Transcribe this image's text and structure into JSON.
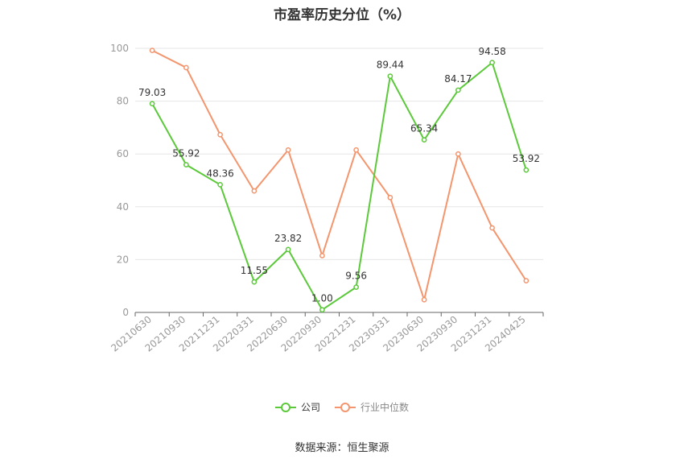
{
  "chart_data": {
    "type": "line",
    "title": "市盈率历史分位（%）",
    "categories": [
      "20210630",
      "20210930",
      "20211231",
      "20220331",
      "20220630",
      "20220930",
      "20221231",
      "20230331",
      "20230630",
      "20230930",
      "20231231",
      "20240425"
    ],
    "series": [
      {
        "name": "公司",
        "color": "#5cc93b",
        "values": [
          79.03,
          55.92,
          48.36,
          11.55,
          23.82,
          1.0,
          9.56,
          89.44,
          65.34,
          84.17,
          94.58,
          53.92
        ],
        "labels": [
          "79.03",
          "55.92",
          "48.36",
          "11.55",
          "23.82",
          "1.00",
          "9.56",
          "89.44",
          "65.34",
          "84.17",
          "94.58",
          "53.92"
        ]
      },
      {
        "name": "行业中位数",
        "color": "#f4956d",
        "values": [
          99.2,
          92.7,
          67.3,
          46.0,
          61.5,
          21.5,
          61.5,
          43.5,
          4.8,
          60.0,
          32.0,
          12.0
        ]
      }
    ],
    "ylim": [
      0,
      100
    ],
    "yticks": [
      0,
      20,
      40,
      60,
      80,
      100
    ],
    "grid": true,
    "legend": "bottom-center"
  },
  "source": "数据来源：恒生聚源"
}
